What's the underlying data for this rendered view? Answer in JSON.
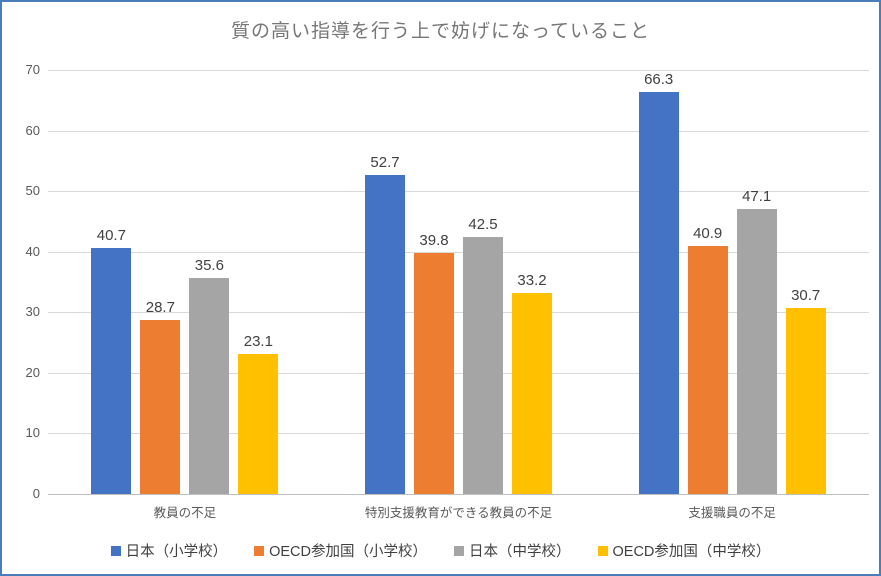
{
  "window": {
    "border_color": "#4a7ebb",
    "background": "#ffffff"
  },
  "chart_data": {
    "type": "bar",
    "title": "質の高い指導を行う上で妨げになっていること",
    "categories": [
      "教員の不足",
      "特別支援教育ができる教員の不足",
      "支援職員の不足"
    ],
    "series": [
      {
        "name": "日本（小学校）",
        "color": "#4472c4",
        "values": [
          40.7,
          52.7,
          66.3
        ]
      },
      {
        "name": "OECD参加国（小学校）",
        "color": "#ed7d31",
        "values": [
          28.7,
          39.8,
          40.9
        ]
      },
      {
        "name": "日本（中学校）",
        "color": "#a5a5a5",
        "values": [
          35.6,
          42.5,
          47.1
        ]
      },
      {
        "name": "OECD参加国（中学校）",
        "color": "#ffc000",
        "values": [
          23.1,
          33.2,
          30.7
        ]
      }
    ],
    "xlabel": "",
    "ylabel": "",
    "ylim": [
      0,
      70
    ],
    "yticks": [
      0,
      10,
      20,
      30,
      40,
      50,
      60,
      70
    ],
    "grid": true,
    "data_labels": true,
    "legend_position": "bottom"
  },
  "colors": {
    "title_text": "#767676",
    "axis_text": "#595959",
    "data_label_text": "#404040",
    "gridline": "#d9d9d9",
    "axis_line": "#bfbfbf"
  }
}
